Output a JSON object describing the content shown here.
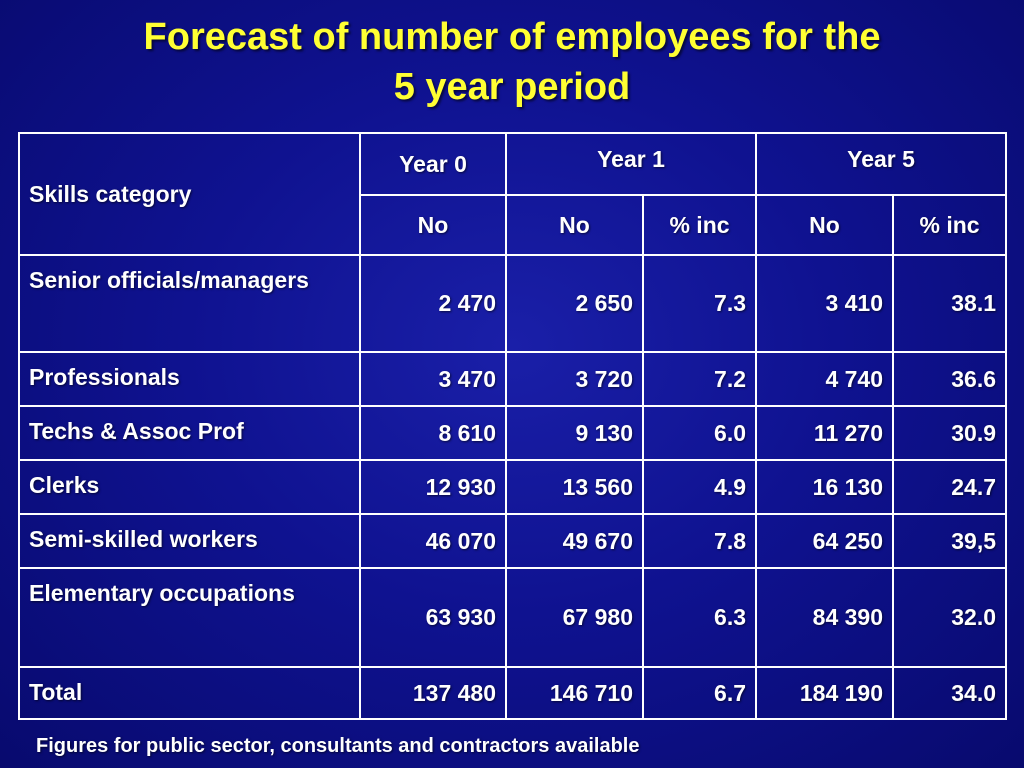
{
  "slide": {
    "title_line1": "Forecast of number of employees for the",
    "title_line2": "5 year period",
    "footnote": "Figures for public sector, consultants and contractors available"
  },
  "table": {
    "header": {
      "category": "Skills category",
      "year0": "Year 0",
      "year1": "Year 1",
      "year5": "Year 5",
      "no": "No",
      "pct_inc": "% inc"
    },
    "rows": [
      {
        "category": "Senior officials/managers",
        "y0_no": "2 470",
        "y1_no": "2 650",
        "y1_pct": "7.3",
        "y5_no": "3 410",
        "y5_pct": "38.1"
      },
      {
        "category": "Professionals",
        "y0_no": "3 470",
        "y1_no": "3 720",
        "y1_pct": "7.2",
        "y5_no": "4 740",
        "y5_pct": "36.6"
      },
      {
        "category": "Techs & Assoc Prof",
        "y0_no": "8 610",
        "y1_no": "9 130",
        "y1_pct": "6.0",
        "y5_no": "11 270",
        "y5_pct": "30.9"
      },
      {
        "category": "Clerks",
        "y0_no": "12 930",
        "y1_no": "13 560",
        "y1_pct": "4.9",
        "y5_no": "16 130",
        "y5_pct": "24.7"
      },
      {
        "category": "Semi-skilled workers",
        "y0_no": "46 070",
        "y1_no": "49 670",
        "y1_pct": "7.8",
        "y5_no": "64 250",
        "y5_pct": "39,5"
      },
      {
        "category": "Elementary occupations",
        "y0_no": "63 930",
        "y1_no": "67 980",
        "y1_pct": "6.3",
        "y5_no": "84 390",
        "y5_pct": "32.0"
      },
      {
        "category": "Total",
        "y0_no": "137 480",
        "y1_no": "146 710",
        "y1_pct": "6.7",
        "y5_no": "184 190",
        "y5_pct": "34.0"
      }
    ]
  },
  "colors": {
    "background": "#0f1290",
    "title": "#ffff33",
    "text": "#ffffff",
    "border": "#ffffff"
  }
}
